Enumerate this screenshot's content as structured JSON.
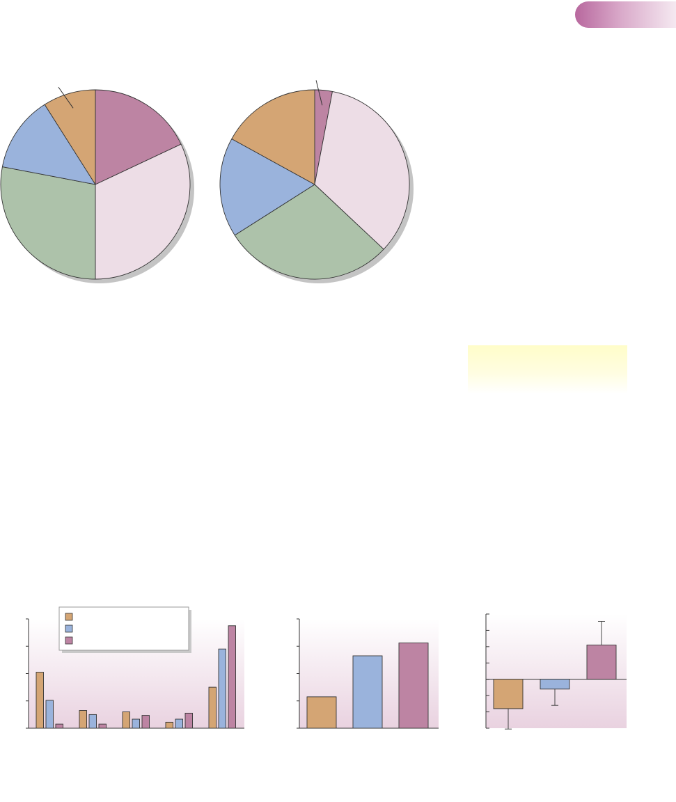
{
  "colors": {
    "tan": "#d4a574",
    "blue": "#9ab3dc",
    "green": "#adc2aa",
    "pink": "#eddde6",
    "mauve": "#bd84a3",
    "pie_outline": "#333333",
    "panel_top": "#ffffff",
    "panel_bottom": "#e9d2e0"
  },
  "chart_data": [
    {
      "type": "pie",
      "title": "",
      "slices_pct": [
        18,
        32,
        28,
        13,
        9
      ],
      "slice_colors": [
        "mauve",
        "pink",
        "green",
        "blue",
        "tan"
      ],
      "start_angle_deg": 0,
      "callout": {
        "slice_index": 4
      }
    },
    {
      "type": "pie",
      "title": "",
      "slices_pct": [
        3,
        34,
        29,
        17,
        17
      ],
      "slice_colors": [
        "mauve",
        "pink",
        "green",
        "blue",
        "tan"
      ],
      "start_angle_deg": 0,
      "callout": {
        "slice_index": 0
      }
    },
    {
      "type": "bar",
      "title": "",
      "xlabel": "",
      "ylabel": "",
      "categories": [
        "",
        "",
        "",
        "",
        ""
      ],
      "series": [
        {
          "color": "tan",
          "values": [
            2.05,
            0.65,
            0.6,
            0.22,
            1.5
          ]
        },
        {
          "color": "blue",
          "values": [
            1.02,
            0.5,
            0.33,
            0.33,
            2.9
          ]
        },
        {
          "color": "mauve",
          "values": [
            0.15,
            0.15,
            0.47,
            0.55,
            3.75
          ]
        }
      ],
      "ylim": [
        0,
        4
      ],
      "yticks": [
        0,
        1,
        2,
        3,
        4
      ],
      "legend": {
        "position": "top-left",
        "entries": [
          "",
          "",
          ""
        ]
      },
      "grid": false
    },
    {
      "type": "bar",
      "title": "",
      "xlabel": "",
      "ylabel": "",
      "categories": [
        "",
        "",
        ""
      ],
      "bar_colors": [
        "tan",
        "blue",
        "mauve"
      ],
      "values": [
        1.15,
        2.65,
        3.12
      ],
      "ylim": [
        0,
        4
      ],
      "yticks": [
        0,
        1,
        2,
        3,
        4
      ],
      "grid": false
    },
    {
      "type": "bar",
      "title": "",
      "xlabel": "",
      "ylabel": "",
      "categories": [
        "",
        "",
        ""
      ],
      "bar_colors": [
        "tan",
        "blue",
        "mauve"
      ],
      "values": [
        -1.8,
        -0.6,
        2.1
      ],
      "error_bars": [
        1.25,
        1.0,
        1.45
      ],
      "ylim": [
        -3,
        4
      ],
      "yticks": [
        -3,
        -2,
        -1,
        0,
        1,
        2,
        3,
        4
      ],
      "zero_line": true,
      "grid": false
    }
  ]
}
